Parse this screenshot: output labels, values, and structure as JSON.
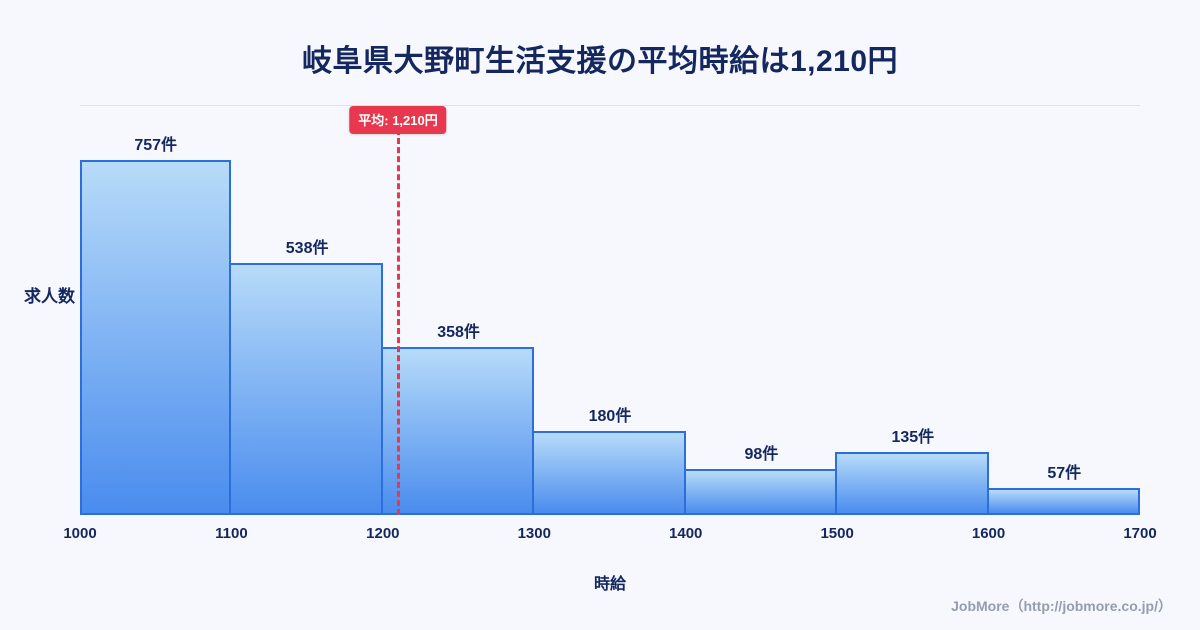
{
  "page": {
    "title": "岐阜県大野町生活支援の平均時給は1,210円",
    "watermark": "JobMore（http://jobmore.co.jp/）"
  },
  "chart_data": {
    "type": "bar",
    "title": "岐阜県大野町生活支援の平均時給は1,210円",
    "xlabel": "時給",
    "ylabel": "求人数",
    "x_range": [
      1000,
      1700
    ],
    "bin_width": 100,
    "x_ticks": [
      "1000",
      "1100",
      "1200",
      "1300",
      "1400",
      "1500",
      "1600",
      "1700"
    ],
    "categories": [
      "1000-1100",
      "1100-1200",
      "1200-1300",
      "1300-1400",
      "1400-1500",
      "1500-1600",
      "1600-1700"
    ],
    "values": [
      757,
      538,
      358,
      180,
      98,
      135,
      57
    ],
    "value_labels": [
      "757件",
      "538件",
      "358件",
      "180件",
      "98件",
      "135件",
      "57件"
    ],
    "mean": {
      "value": 1210,
      "label": "平均: 1,210円"
    },
    "legend": false,
    "grid": false,
    "layout_hints": {
      "max_bar_height_pct": 86.5
    },
    "colors": {
      "bar_fill_top": "#b7dbf9",
      "bar_fill_bottom": "#4a8cee",
      "bar_border": "#2c6fdb",
      "mean_line": "#e8384f",
      "title_text": "#14275e",
      "background": "#f6f8fd"
    }
  }
}
